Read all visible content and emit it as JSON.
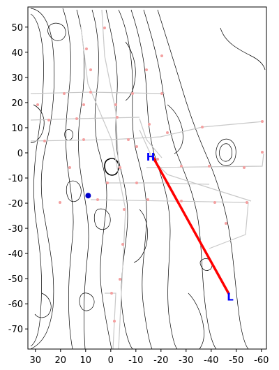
{
  "map": {
    "x_axis": {
      "range": [
        33,
        -62
      ],
      "ticks": [
        30,
        20,
        10,
        0,
        -10,
        -20,
        -30,
        -40,
        -50,
        -60
      ]
    },
    "y_axis": {
      "range": [
        -78,
        58
      ],
      "ticks": [
        50,
        40,
        30,
        20,
        10,
        0,
        -10,
        -20,
        -30,
        -40,
        -50,
        -60,
        -70
      ]
    },
    "profile_line": {
      "color": "#ff0000",
      "start": {
        "label": "H",
        "x": -17,
        "y": -2
      },
      "end": {
        "label": "L",
        "x": -47,
        "y": -56
      }
    },
    "location_dot": {
      "x": 9,
      "y": -17,
      "color": "#0000cc"
    },
    "marker_color": "#0000ff",
    "track_color": "#c8c8c8",
    "sample_color": "#f4a0a0",
    "contour_color": "#000000"
  }
}
